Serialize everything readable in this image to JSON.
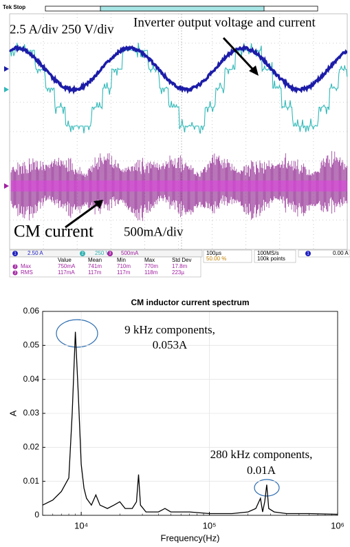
{
  "scope": {
    "status": "Tek Stop",
    "scale_note": "2.5 A/div  250 V/div",
    "inverter_note": "Inverter output voltage and current",
    "cm_note": "CM current",
    "cm_scale": "500mA/div",
    "channels": [
      "1",
      "2",
      "3"
    ],
    "ch1_scale": "2.50 A",
    "ch2_scale": "250 V",
    "ch3_scale": "500mA",
    "timebase": "100µs",
    "trigger_pos": "50.00 %",
    "sample_rate": "100MS/s",
    "record": "100k points",
    "trigger_level": "0.00 A",
    "table": {
      "headers": [
        "Value",
        "Mean",
        "Min",
        "Max",
        "Std Dev"
      ],
      "rows": [
        [
          "Max",
          "750mA",
          "741m",
          "710m",
          "770m",
          "17.8m"
        ],
        [
          "RMS",
          "117mA",
          "117m",
          "117m",
          "118m",
          "223µ"
        ]
      ]
    }
  },
  "chart_data": {
    "type": "line",
    "title": "CM inductor current spectrum",
    "xlabel": "Frequency(Hz)",
    "ylabel": "A",
    "xscale": "log",
    "color": "#000000",
    "x": [
      5000,
      6000,
      7000,
      8000,
      8500,
      9000,
      9500,
      10000,
      10500,
      11000,
      12000,
      13000,
      14000,
      16000,
      18000,
      20000,
      22000,
      25000,
      27000,
      28000,
      29000,
      32000,
      40000,
      45000,
      50000,
      70000,
      100000,
      150000,
      200000,
      230000,
      250000,
      260000,
      270000,
      280000,
      290000,
      320000,
      400000,
      600000,
      1000000
    ],
    "values": [
      0.003,
      0.0045,
      0.007,
      0.011,
      0.03,
      0.054,
      0.035,
      0.015,
      0.008,
      0.005,
      0.003,
      0.006,
      0.003,
      0.002,
      0.003,
      0.004,
      0.002,
      0.002,
      0.004,
      0.012,
      0.003,
      0.001,
      0.001,
      0.002,
      0.001,
      0.001,
      0.0005,
      0.0005,
      0.001,
      0.002,
      0.005,
      0.001,
      0.004,
      0.009,
      0.002,
      0.001,
      0.0005,
      0.0005,
      0.0003
    ],
    "xlim": [
      5000,
      1000000
    ],
    "ylim": [
      0,
      0.06
    ],
    "xticks": [
      {
        "value": 10000,
        "label": "10⁴"
      },
      {
        "value": 100000,
        "label": "10⁵"
      },
      {
        "value": 1000000,
        "label": "10⁶"
      }
    ],
    "yticks": [
      0,
      0.01,
      0.02,
      0.03,
      0.04,
      0.05,
      0.06
    ],
    "grid": true,
    "annotations": [
      "9 kHz components,",
      "0.053A",
      "280 kHz components,",
      "0.01A"
    ]
  }
}
